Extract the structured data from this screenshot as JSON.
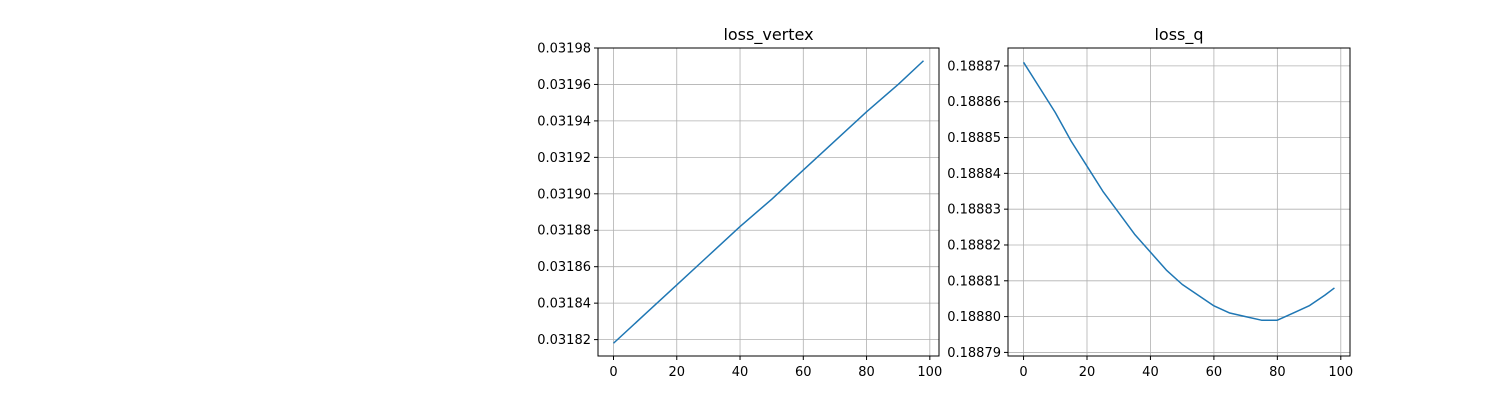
{
  "chart_data": [
    {
      "type": "line",
      "title": "loss_vertex",
      "xlabel": "",
      "ylabel": "",
      "xlim": [
        -4.9,
        102.9
      ],
      "ylim": [
        0.031811,
        0.03198
      ],
      "xticks": [
        0,
        20,
        40,
        60,
        80,
        100
      ],
      "xtick_labels": [
        "0",
        "20",
        "40",
        "60",
        "80",
        "100"
      ],
      "yticks": [
        0.03182,
        0.03184,
        0.03186,
        0.03188,
        0.0319,
        0.03192,
        0.03194,
        0.03196,
        0.03198
      ],
      "ytick_labels": [
        "0.03182",
        "0.03184",
        "0.03186",
        "0.03188",
        "0.03190",
        "0.03192",
        "0.03194",
        "0.03196",
        "0.03198"
      ],
      "grid": true,
      "line_color": "#1f77b4",
      "series": [
        {
          "x": [
            0,
            10,
            20,
            30,
            40,
            50,
            60,
            70,
            80,
            90,
            98
          ],
          "y": [
            0.031818,
            0.031834,
            0.03185,
            0.031866,
            0.031882,
            0.031897,
            0.031913,
            0.031929,
            0.031945,
            0.03196,
            0.031973
          ]
        }
      ]
    },
    {
      "type": "line",
      "title": "loss_q",
      "xlabel": "",
      "ylabel": "",
      "xlim": [
        -4.9,
        102.9
      ],
      "ylim": [
        0.188789,
        0.188875
      ],
      "xticks": [
        0,
        20,
        40,
        60,
        80,
        100
      ],
      "xtick_labels": [
        "0",
        "20",
        "40",
        "60",
        "80",
        "100"
      ],
      "yticks": [
        0.18879,
        0.1888,
        0.18881,
        0.18882,
        0.18883,
        0.18884,
        0.18885,
        0.18886,
        0.18887
      ],
      "ytick_labels": [
        "0.18879",
        "0.18880",
        "0.18881",
        "0.18882",
        "0.18883",
        "0.18884",
        "0.18885",
        "0.18886",
        "0.18887"
      ],
      "grid": true,
      "line_color": "#1f77b4",
      "series": [
        {
          "x": [
            0,
            5,
            10,
            15,
            20,
            25,
            30,
            35,
            40,
            45,
            50,
            55,
            60,
            65,
            70,
            75,
            80,
            85,
            90,
            95,
            98
          ],
          "y": [
            0.188871,
            0.188864,
            0.188857,
            0.188849,
            0.188842,
            0.188835,
            0.188829,
            0.188823,
            0.188818,
            0.188813,
            0.188809,
            0.188806,
            0.188803,
            0.188801,
            0.1888,
            0.188799,
            0.188799,
            0.188801,
            0.188803,
            0.188806,
            0.188808
          ]
        }
      ]
    }
  ]
}
